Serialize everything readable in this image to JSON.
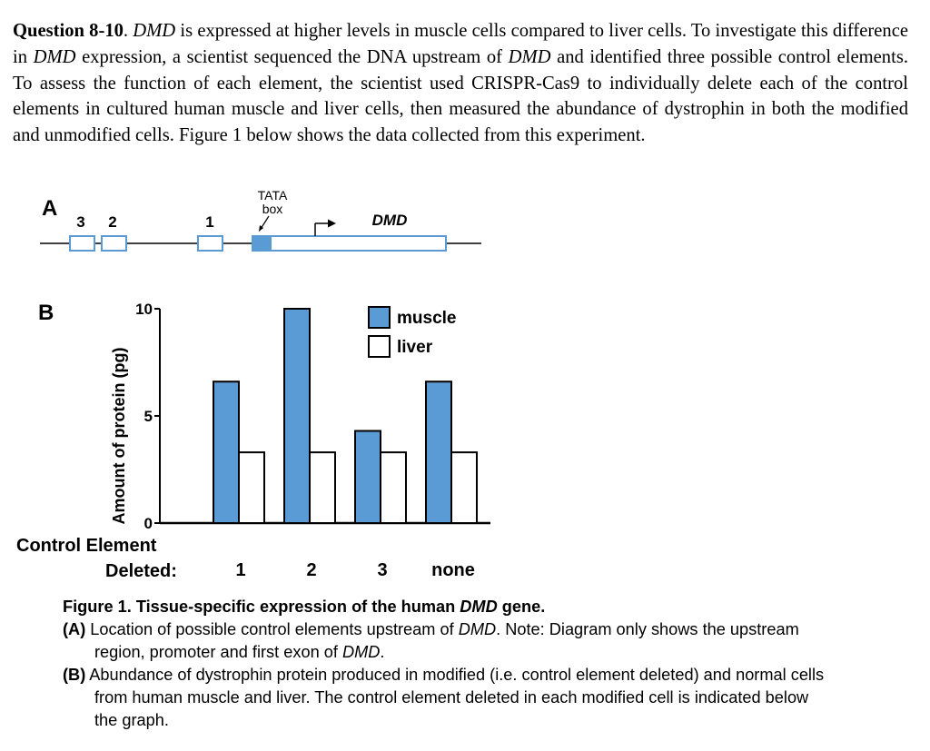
{
  "question": {
    "label": "Question 8-10",
    "gene": "DMD",
    "t1": ". ",
    "t2": " is expressed at higher levels in muscle cells compared to liver cells. To investigate this difference in ",
    "t3": " expression, a scientist sequenced the DNA upstream of ",
    "t4": " and identified three possible control elements. To assess the function of each element, the scientist used CRISPR-Cas9 to individually delete each of the control elements in cultured human muscle and liver cells, then measured the abundance of dystrophin in both the modified and unmodified cells. Figure 1 below shows the data collected from this experiment."
  },
  "figure_a": {
    "panel_label": "A",
    "element_labels": [
      "3",
      "2",
      "1"
    ],
    "tata_label_line1": "TATA",
    "tata_label_line2": "box",
    "gene_label": "DMD"
  },
  "chart_data": {
    "type": "bar",
    "panel_label": "B",
    "ylabel": "Amount of protein (pg)",
    "xlabel_line1": "Control Element",
    "xlabel_line2": "Deleted:",
    "categories": [
      "1",
      "2",
      "3",
      "none"
    ],
    "yticks": [
      "0",
      "5",
      "10"
    ],
    "ylim": [
      0,
      10
    ],
    "grid": false,
    "legend_position": "top-right",
    "series": [
      {
        "name": "muscle",
        "color": "#5b9bd5",
        "values": [
          6.6,
          10.0,
          4.3,
          6.6
        ]
      },
      {
        "name": "liver",
        "color": "#ffffff",
        "values": [
          3.3,
          3.3,
          3.3,
          3.3
        ]
      }
    ]
  },
  "caption": {
    "title_prefix": "Figure 1. Tissue-specific expression of the human ",
    "title_gene": "DMD",
    "title_suffix": " gene.",
    "a_tag": "(A)",
    "a_text1": " Location of possible control elements upstream of ",
    "a_gene": "DMD",
    "a_text2": ". Note: Diagram only shows the upstream region, promoter and first exon of ",
    "a_gene2": "DMD",
    "a_text3": ".",
    "b_tag": "(B)",
    "b_text": " Abundance of dystrophin protein produced in modified (i.e. control element deleted) and normal cells from human muscle and liver. The control element deleted in each modified cell is indicated below the graph."
  }
}
